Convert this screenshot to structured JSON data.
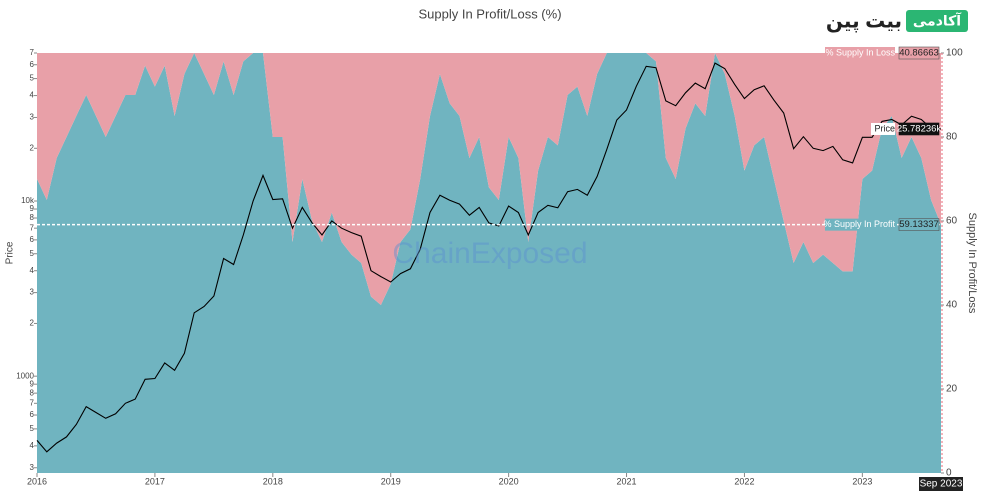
{
  "chart_data": {
    "type": "area",
    "title": "Supply In Profit/Loss (%)",
    "ylabel": "Price",
    "y2label": "Supply In Profit/Loss",
    "watermark": "ChainExposed",
    "logo": {
      "name": "بیت پین",
      "tag": "آکادمی"
    },
    "end_date_label": "Sep 2023",
    "x": [
      2016,
      2016.083,
      2016.167,
      2016.25,
      2016.333,
      2016.417,
      2016.5,
      2016.583,
      2016.667,
      2016.75,
      2016.833,
      2016.917,
      2017,
      2017.083,
      2017.167,
      2017.25,
      2017.333,
      2017.417,
      2017.5,
      2017.583,
      2017.667,
      2017.75,
      2017.833,
      2017.917,
      2018,
      2018.083,
      2018.167,
      2018.25,
      2018.333,
      2018.417,
      2018.5,
      2018.583,
      2018.667,
      2018.75,
      2018.833,
      2018.917,
      2019,
      2019.083,
      2019.167,
      2019.25,
      2019.333,
      2019.417,
      2019.5,
      2019.583,
      2019.667,
      2019.75,
      2019.833,
      2019.917,
      2020,
      2020.083,
      2020.167,
      2020.25,
      2020.333,
      2020.417,
      2020.5,
      2020.583,
      2020.667,
      2020.75,
      2020.833,
      2020.917,
      2021,
      2021.083,
      2021.167,
      2021.25,
      2021.333,
      2021.417,
      2021.5,
      2021.583,
      2021.667,
      2021.75,
      2021.833,
      2021.917,
      2022,
      2022.083,
      2022.167,
      2022.25,
      2022.333,
      2022.417,
      2022.5,
      2022.583,
      2022.667,
      2022.75,
      2022.833,
      2022.917,
      2023,
      2023.083,
      2023.167,
      2023.25,
      2023.333,
      2023.417,
      2023.5,
      2023.583,
      2023.667
    ],
    "xlim": [
      2016,
      2023.667
    ],
    "xticks": [
      2016,
      2017,
      2018,
      2019,
      2020,
      2021,
      2022,
      2023
    ],
    "ylog": true,
    "ylim": [
      280,
      70000
    ],
    "yticks": [
      {
        "value": 300,
        "label": "3"
      },
      {
        "value": 400,
        "label": "4"
      },
      {
        "value": 500,
        "label": "5"
      },
      {
        "value": 600,
        "label": "6"
      },
      {
        "value": 700,
        "label": "7"
      },
      {
        "value": 800,
        "label": "8"
      },
      {
        "value": 900,
        "label": "9"
      },
      1000,
      {
        "value": 2000,
        "label": "2"
      },
      {
        "value": 3000,
        "label": "3"
      },
      {
        "value": 4000,
        "label": "4"
      },
      {
        "value": 5000,
        "label": "5"
      },
      {
        "value": 6000,
        "label": "6"
      },
      {
        "value": 7000,
        "label": "7"
      },
      {
        "value": 8000,
        "label": "8"
      },
      {
        "value": 9000,
        "label": "9"
      },
      {
        "value": 10000,
        "label": "10k"
      },
      {
        "value": 20000,
        "label": "2"
      },
      {
        "value": 30000,
        "label": "3"
      },
      {
        "value": 40000,
        "label": "4"
      },
      {
        "value": 50000,
        "label": "5"
      },
      {
        "value": 60000,
        "label": "6"
      },
      {
        "value": 70000,
        "label": "7"
      }
    ],
    "y2lim": [
      0,
      100
    ],
    "y2ticks": [
      0,
      20,
      40,
      60,
      80,
      100
    ],
    "series": [
      {
        "name": "% Supply In Profit",
        "color": "#70b4c0",
        "axis": "y2",
        "end_label": "59.13337",
        "values": [
          70,
          65,
          75,
          80,
          85,
          90,
          85,
          80,
          85,
          90,
          90,
          97,
          92,
          97,
          85,
          95,
          100,
          95,
          90,
          98,
          90,
          98,
          100,
          100,
          80,
          80,
          55,
          70,
          60,
          55,
          62,
          55,
          52,
          50,
          42,
          40,
          45,
          55,
          58,
          70,
          85,
          95,
          88,
          85,
          75,
          80,
          68,
          65,
          80,
          75,
          55,
          72,
          80,
          78,
          90,
          92,
          85,
          95,
          100,
          100,
          100,
          100,
          100,
          98,
          75,
          70,
          82,
          88,
          85,
          100,
          95,
          85,
          72,
          78,
          80,
          70,
          60,
          50,
          55,
          50,
          52,
          50,
          48,
          48,
          70,
          72,
          82,
          85,
          75,
          80,
          75,
          65,
          59.13337
        ]
      },
      {
        "name": "% Supply In Loss",
        "color": "#e8a0a8",
        "axis": "y2",
        "end_label": "40.86663",
        "values": [
          30,
          35,
          25,
          20,
          15,
          10,
          15,
          20,
          15,
          10,
          10,
          3,
          8,
          3,
          15,
          5,
          0,
          5,
          10,
          2,
          10,
          2,
          0,
          0,
          20,
          20,
          45,
          30,
          40,
          45,
          38,
          45,
          48,
          50,
          58,
          60,
          55,
          45,
          42,
          30,
          15,
          5,
          12,
          15,
          25,
          20,
          32,
          35,
          20,
          25,
          45,
          28,
          20,
          22,
          10,
          8,
          15,
          5,
          0,
          0,
          0,
          0,
          0,
          2,
          25,
          30,
          18,
          12,
          15,
          0,
          5,
          15,
          28,
          22,
          20,
          30,
          40,
          50,
          45,
          50,
          48,
          50,
          52,
          52,
          30,
          28,
          18,
          15,
          25,
          20,
          25,
          35,
          40.86663
        ]
      },
      {
        "name": "Price",
        "color": "#000000",
        "axis": "y",
        "end_label": "25.78236k",
        "values": [
          430,
          370,
          415,
          450,
          530,
          670,
          620,
          575,
          610,
          700,
          740,
          960,
          970,
          1190,
          1080,
          1350,
          2300,
          2500,
          2870,
          4700,
          4340,
          6400,
          10000,
          14000,
          10200,
          10300,
          7000,
          9200,
          7500,
          6400,
          7700,
          7000,
          6600,
          6300,
          4000,
          3700,
          3450,
          3850,
          4100,
          5300,
          8600,
          10800,
          10100,
          9600,
          8300,
          9200,
          7500,
          7200,
          9350,
          8600,
          6400,
          8600,
          9450,
          9150,
          11300,
          11650,
          10800,
          13800,
          19700,
          29000,
          33100,
          45200,
          58800,
          57700,
          37300,
          35000,
          41500,
          47100,
          43800,
          61300,
          57000,
          46300,
          38500,
          43200,
          45500,
          37700,
          31800,
          19900,
          23300,
          20000,
          19400,
          20500,
          17200,
          16500,
          23100,
          23100,
          28500,
          29200,
          27200,
          30500,
          29200,
          26000,
          25782.36
        ]
      }
    ]
  }
}
